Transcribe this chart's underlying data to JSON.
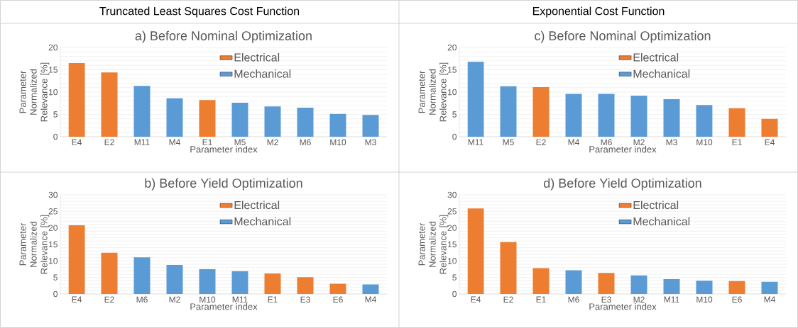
{
  "chart_data": [
    {
      "type": "bar",
      "title": "a) Before Nominal Optimization",
      "xlabel": "Parameter index",
      "ylabel": "Parameter Normalized Relevance [%]",
      "annotations": [
        "Truncated Least Squares Cost Function"
      ],
      "categories": [
        "E4",
        "E2",
        "M11",
        "M4",
        "E1",
        "M5",
        "M2",
        "M6",
        "M10",
        "M3"
      ],
      "series": [
        {
          "name": "Electrical",
          "color": "#ed7d31",
          "values": [
            16.5,
            14.4,
            null,
            null,
            8.2,
            null,
            null,
            null,
            null,
            null
          ]
        },
        {
          "name": "Mechanical",
          "color": "#5b9bd5",
          "values": [
            null,
            null,
            11.4,
            8.6,
            null,
            7.6,
            6.8,
            6.5,
            5.1,
            4.9
          ]
        }
      ],
      "ylim": [
        0,
        20
      ],
      "yticks": [
        0,
        {
          "value": 1,
          "label": null
        },
        {
          "value": 2,
          "label": null
        },
        {
          "value": 3,
          "label": null
        },
        {
          "value": 4,
          "label": null
        },
        5,
        {
          "value": 6,
          "label": null
        },
        {
          "value": 7,
          "label": null
        },
        {
          "value": 8,
          "label": null
        },
        {
          "value": 9,
          "label": null
        },
        10,
        {
          "value": 11,
          "label": null
        },
        {
          "value": 12,
          "label": null
        },
        {
          "value": 13,
          "label": null
        },
        {
          "value": 14,
          "label": null
        },
        15,
        {
          "value": 16,
          "label": null
        },
        {
          "value": 17,
          "label": null
        },
        {
          "value": 18,
          "label": null
        },
        {
          "value": 19,
          "label": null
        },
        20
      ],
      "grid": "y",
      "legend": "top"
    },
    {
      "type": "bar",
      "title": "c) Before Nominal Optimization",
      "xlabel": "Parameter index",
      "ylabel": "Parameter Normalized Relevance [%]",
      "annotations": [
        "Exponential Cost Function"
      ],
      "categories": [
        "M11",
        "M5",
        "E2",
        "M4",
        "M6",
        "M2",
        "M3",
        "M10",
        "E1",
        "E4"
      ],
      "series": [
        {
          "name": "Electrical",
          "color": "#ed7d31",
          "values": [
            null,
            null,
            11.1,
            null,
            null,
            null,
            null,
            null,
            6.4,
            4.0
          ]
        },
        {
          "name": "Mechanical",
          "color": "#5b9bd5",
          "values": [
            16.8,
            11.3,
            null,
            9.6,
            9.6,
            9.2,
            8.4,
            7.1,
            null,
            null
          ]
        }
      ],
      "ylim": [
        0,
        20
      ],
      "yticks": [
        0,
        {
          "value": 1,
          "label": null
        },
        {
          "value": 2,
          "label": null
        },
        {
          "value": 3,
          "label": null
        },
        {
          "value": 4,
          "label": null
        },
        5,
        {
          "value": 6,
          "label": null
        },
        {
          "value": 7,
          "label": null
        },
        {
          "value": 8,
          "label": null
        },
        {
          "value": 9,
          "label": null
        },
        10,
        {
          "value": 11,
          "label": null
        },
        {
          "value": 12,
          "label": null
        },
        {
          "value": 13,
          "label": null
        },
        {
          "value": 14,
          "label": null
        },
        15,
        {
          "value": 16,
          "label": null
        },
        {
          "value": 17,
          "label": null
        },
        {
          "value": 18,
          "label": null
        },
        {
          "value": 19,
          "label": null
        },
        20
      ],
      "grid": "y",
      "legend": "top"
    },
    {
      "type": "bar",
      "title": "b) Before Yield Optimization",
      "xlabel": "Parameter index",
      "ylabel": "Parameter Normalized Relevance [%]",
      "categories": [
        "E4",
        "E2",
        "M6",
        "M2",
        "M10",
        "M11",
        "E1",
        "E3",
        "E6",
        "M4"
      ],
      "series": [
        {
          "name": "Electrical",
          "color": "#ed7d31",
          "values": [
            20.8,
            12.5,
            null,
            null,
            null,
            null,
            6.2,
            5.1,
            3.1,
            null
          ]
        },
        {
          "name": "Mechanical",
          "color": "#5b9bd5",
          "values": [
            null,
            null,
            11.1,
            8.8,
            7.5,
            6.9,
            null,
            null,
            null,
            2.9
          ]
        }
      ],
      "ylim": [
        0,
        30
      ],
      "yticks": [
        0,
        {
          "value": 1,
          "label": null
        },
        {
          "value": 2,
          "label": null
        },
        {
          "value": 3,
          "label": null
        },
        {
          "value": 4,
          "label": null
        },
        5,
        {
          "value": 6,
          "label": null
        },
        {
          "value": 7,
          "label": null
        },
        {
          "value": 8,
          "label": null
        },
        {
          "value": 9,
          "label": null
        },
        10,
        {
          "value": 11,
          "label": null
        },
        {
          "value": 12,
          "label": null
        },
        {
          "value": 13,
          "label": null
        },
        {
          "value": 14,
          "label": null
        },
        15,
        {
          "value": 16,
          "label": null
        },
        {
          "value": 17,
          "label": null
        },
        {
          "value": 18,
          "label": null
        },
        {
          "value": 19,
          "label": null
        },
        20,
        {
          "value": 21,
          "label": null
        },
        {
          "value": 22,
          "label": null
        },
        {
          "value": 23,
          "label": null
        },
        {
          "value": 24,
          "label": null
        },
        25,
        {
          "value": 26,
          "label": null
        },
        {
          "value": 27,
          "label": null
        },
        {
          "value": 28,
          "label": null
        },
        {
          "value": 29,
          "label": null
        },
        30
      ],
      "grid": "y",
      "legend": "top"
    },
    {
      "type": "bar",
      "title": "d) Before Yield Optimization",
      "xlabel": "Parameter index",
      "ylabel": "Parameter Normalized Relevance [%]",
      "categories": [
        "E4",
        "E2",
        "E1",
        "M6",
        "E3",
        "M2",
        "M11",
        "M10",
        "E6",
        "M4"
      ],
      "series": [
        {
          "name": "Electrical",
          "color": "#ed7d31",
          "values": [
            25.9,
            15.7,
            7.8,
            null,
            6.4,
            null,
            null,
            null,
            3.9,
            null
          ]
        },
        {
          "name": "Mechanical",
          "color": "#5b9bd5",
          "values": [
            null,
            null,
            null,
            7.2,
            null,
            5.6,
            4.5,
            4.0,
            null,
            3.7
          ]
        }
      ],
      "ylim": [
        0,
        30
      ],
      "yticks": [
        0,
        {
          "value": 1,
          "label": null
        },
        {
          "value": 2,
          "label": null
        },
        {
          "value": 3,
          "label": null
        },
        {
          "value": 4,
          "label": null
        },
        5,
        {
          "value": 6,
          "label": null
        },
        {
          "value": 7,
          "label": null
        },
        {
          "value": 8,
          "label": null
        },
        {
          "value": 9,
          "label": null
        },
        10,
        {
          "value": 11,
          "label": null
        },
        {
          "value": 12,
          "label": null
        },
        {
          "value": 13,
          "label": null
        },
        {
          "value": 14,
          "label": null
        },
        15,
        {
          "value": 16,
          "label": null
        },
        {
          "value": 17,
          "label": null
        },
        {
          "value": 18,
          "label": null
        },
        {
          "value": 19,
          "label": null
        },
        20,
        {
          "value": 21,
          "label": null
        },
        {
          "value": 22,
          "label": null
        },
        {
          "value": 23,
          "label": null
        },
        {
          "value": 24,
          "label": null
        },
        25,
        {
          "value": 26,
          "label": null
        },
        {
          "value": 27,
          "label": null
        },
        {
          "value": 28,
          "label": null
        },
        {
          "value": 29,
          "label": null
        },
        30
      ],
      "grid": "y",
      "legend": "top"
    }
  ]
}
